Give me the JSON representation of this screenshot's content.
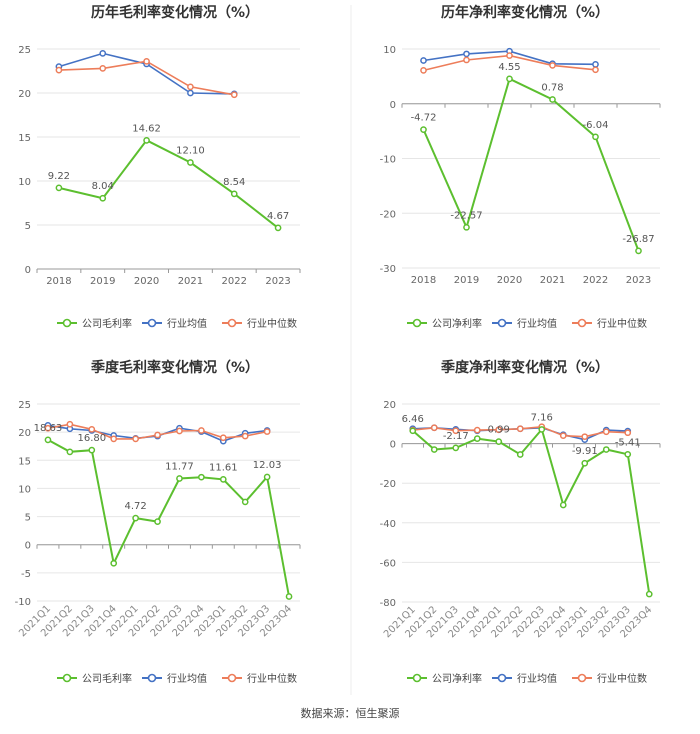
{
  "colors": {
    "company": "#5cbf2f",
    "avg": "#4472c4",
    "median": "#ed7d5a",
    "grid": "#e6e6e6",
    "axis": "#999999",
    "text": "#666666",
    "title": "#333333"
  },
  "source": "数据来源：恒生聚源",
  "chart_data": [
    {
      "type": "line",
      "title": "历年毛利率变化情况（%）",
      "categories": [
        "2018",
        "2019",
        "2020",
        "2021",
        "2022",
        "2023"
      ],
      "ylim": [
        0,
        25
      ],
      "yticks": [
        0,
        5,
        10,
        15,
        20,
        25
      ],
      "series": [
        {
          "name": "公司毛利率",
          "key": "company",
          "values": [
            9.22,
            8.04,
            14.62,
            12.1,
            8.54,
            4.67
          ],
          "labels": [
            "9.22",
            "8.04",
            "14.62",
            "12.10",
            "8.54",
            "4.67"
          ]
        },
        {
          "name": "行业均值",
          "key": "avg",
          "values": [
            23.0,
            24.5,
            23.3,
            20.0,
            19.9,
            null
          ]
        },
        {
          "name": "行业中位数",
          "key": "median",
          "values": [
            22.6,
            22.8,
            23.6,
            20.7,
            19.8,
            null
          ]
        }
      ]
    },
    {
      "type": "line",
      "title": "历年净利率变化情况（%）",
      "categories": [
        "2018",
        "2019",
        "2020",
        "2021",
        "2022",
        "2023"
      ],
      "ylim": [
        -30,
        10
      ],
      "yticks": [
        -30,
        -20,
        -10,
        0,
        10
      ],
      "series": [
        {
          "name": "公司净利率",
          "key": "company",
          "values": [
            -4.72,
            -22.57,
            4.55,
            0.78,
            -6.04,
            -26.87
          ],
          "labels": [
            "-4.72",
            "-22.57",
            "4.55",
            "0.78",
            "-6.04",
            "-26.87"
          ]
        },
        {
          "name": "行业均值",
          "key": "avg",
          "values": [
            7.9,
            9.1,
            9.6,
            7.3,
            7.2,
            null
          ]
        },
        {
          "name": "行业中位数",
          "key": "median",
          "values": [
            6.1,
            8.0,
            8.8,
            7.0,
            6.2,
            null
          ]
        }
      ]
    },
    {
      "type": "line",
      "title": "季度毛利率变化情况（%）",
      "categories": [
        "2021Q1",
        "2021Q2",
        "2021Q3",
        "2021Q4",
        "2022Q1",
        "2022Q2",
        "2022Q3",
        "2022Q4",
        "2023Q1",
        "2023Q2",
        "2023Q3",
        "2023Q4"
      ],
      "ylim": [
        -10,
        25
      ],
      "yticks": [
        -10,
        -5,
        0,
        5,
        10,
        15,
        20,
        25
      ],
      "series": [
        {
          "name": "公司毛利率",
          "key": "company",
          "values": [
            18.63,
            16.5,
            16.8,
            -3.3,
            4.72,
            4.1,
            11.77,
            12.0,
            11.61,
            7.6,
            12.03,
            -9.2
          ],
          "labels": [
            "18.63",
            "",
            "16.80",
            "",
            "4.72",
            "",
            "11.77",
            "",
            "11.61",
            "",
            "12.03",
            ""
          ]
        },
        {
          "name": "行业均值",
          "key": "avg",
          "values": [
            21.2,
            20.6,
            20.3,
            19.4,
            18.9,
            19.3,
            20.7,
            20.1,
            18.4,
            19.8,
            20.3,
            null
          ]
        },
        {
          "name": "行业中位数",
          "key": "median",
          "values": [
            20.7,
            21.4,
            20.5,
            18.8,
            18.8,
            19.5,
            20.2,
            20.3,
            19.0,
            19.3,
            20.1,
            null
          ]
        }
      ]
    },
    {
      "type": "line",
      "title": "季度净利率变化情况（%）",
      "categories": [
        "2021Q1",
        "2021Q2",
        "2021Q3",
        "2021Q4",
        "2022Q1",
        "2022Q2",
        "2022Q3",
        "2022Q4",
        "2023Q1",
        "2023Q2",
        "2023Q3",
        "2023Q4"
      ],
      "ylim": [
        -80,
        20
      ],
      "yticks": [
        -80,
        -60,
        -40,
        -20,
        0,
        20
      ],
      "series": [
        {
          "name": "公司净利率",
          "key": "company",
          "values": [
            6.46,
            -3.0,
            -2.17,
            2.5,
            0.99,
            -5.5,
            7.16,
            -31.0,
            -9.91,
            -3.0,
            -5.41,
            -76.0
          ],
          "labels": [
            "6.46",
            "",
            "-2.17",
            "",
            "0.99",
            "",
            "7.16",
            "",
            "-9.91",
            "",
            "-5.41",
            ""
          ]
        },
        {
          "name": "行业均值",
          "key": "avg",
          "values": [
            7.5,
            8.0,
            7.2,
            6.5,
            7.0,
            7.5,
            8.0,
            4.5,
            2.0,
            6.8,
            6.3,
            null
          ]
        },
        {
          "name": "行业中位数",
          "key": "median",
          "values": [
            6.8,
            8.0,
            6.5,
            6.8,
            7.0,
            7.5,
            8.5,
            4.0,
            3.5,
            6.0,
            5.5,
            null
          ]
        }
      ]
    }
  ]
}
